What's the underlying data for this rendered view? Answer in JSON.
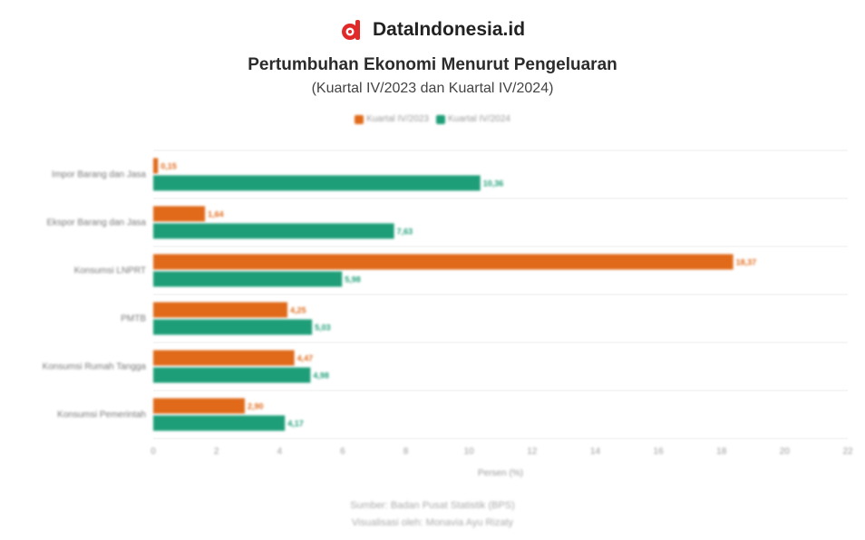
{
  "brand": {
    "name": "DataIndonesia.id",
    "logo_icon": "dataindonesia-logo-icon"
  },
  "chart_data": {
    "type": "bar",
    "orientation": "horizontal",
    "title": "Pertumbuhan Ekonomi Menurut Pengeluaran",
    "subtitle": "(Kuartal IV/2023 dan Kuartal IV/2024)",
    "categories": [
      "Impor Barang dan Jasa",
      "Ekspor Barang dan Jasa",
      "Konsumsi LNPRT",
      "PMTB",
      "Konsumsi Rumah Tangga",
      "Konsumsi Pemerintah"
    ],
    "series": [
      {
        "name": "Kuartal IV/2023",
        "color": "#e06a1a",
        "values": [
          0.15,
          1.64,
          18.37,
          4.25,
          4.47,
          2.9
        ],
        "labels": [
          "0,15",
          "1,64",
          "18,37",
          "4,25",
          "4,47",
          "2,90"
        ]
      },
      {
        "name": "Kuartal IV/2024",
        "color": "#1e9e78",
        "values": [
          10.36,
          7.63,
          5.98,
          5.03,
          4.98,
          4.17
        ],
        "labels": [
          "10,36",
          "7,63",
          "5,98",
          "5,03",
          "4,98",
          "4,17"
        ]
      }
    ],
    "xlim": [
      0,
      22
    ],
    "xticks": [
      0,
      2,
      4,
      6,
      8,
      10,
      12,
      14,
      16,
      18,
      20,
      22
    ],
    "xlabel": "Persen (%)",
    "grid": true,
    "legend_position": "top-center"
  },
  "footer": {
    "source": "Sumber: Badan Pusat Statistik (BPS)",
    "visualization": "Visualisasi oleh: Monavia Ayu Rizaty"
  }
}
